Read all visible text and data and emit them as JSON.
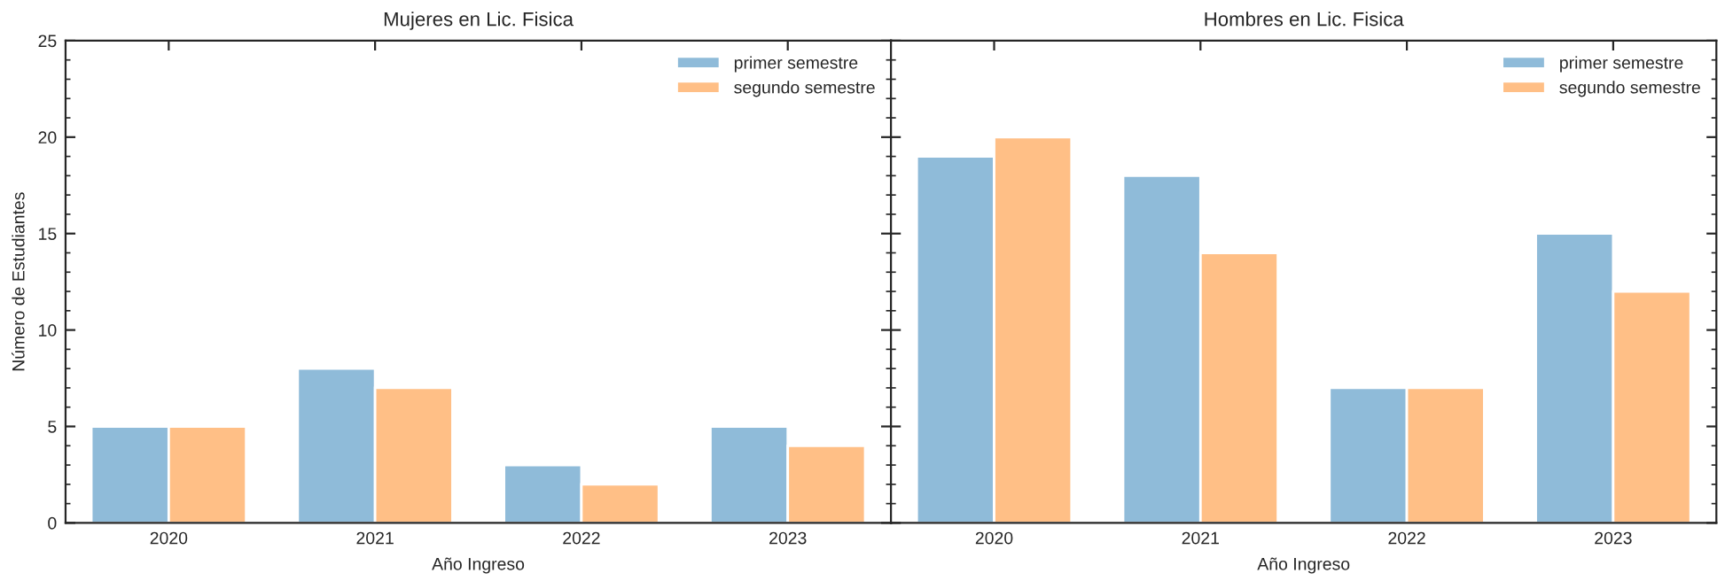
{
  "chart_data": [
    {
      "type": "bar",
      "title": "Mujeres en Lic. Fisica",
      "xlabel": "Año Ingreso",
      "ylabel": "Número de Estudiantes",
      "categories": [
        "2020",
        "2021",
        "2022",
        "2023"
      ],
      "series": [
        {
          "name": "primer semestre",
          "color": "#8fbbd9",
          "values": [
            5,
            8,
            3,
            5
          ]
        },
        {
          "name": "segundo semestre",
          "color": "#ffbf86",
          "values": [
            5,
            7,
            2,
            4
          ]
        }
      ],
      "ylim": [
        0,
        25
      ],
      "yticks": [
        0,
        5,
        10,
        15,
        20,
        25
      ],
      "legend": "top right"
    },
    {
      "type": "bar",
      "title": "Hombres en Lic. Fisica",
      "xlabel": "Año Ingreso",
      "categories": [
        "2020",
        "2021",
        "2022",
        "2023"
      ],
      "series": [
        {
          "name": "primer semestre",
          "color": "#8fbbd9",
          "values": [
            19,
            18,
            7,
            15
          ]
        },
        {
          "name": "segundo semestre",
          "color": "#ffbf86",
          "values": [
            20,
            14,
            7,
            12
          ]
        }
      ],
      "ylim": [
        0,
        25
      ],
      "yticks": [
        0,
        5,
        10,
        15,
        20,
        25
      ],
      "legend": "top right",
      "tick_labels": "x"
    }
  ]
}
